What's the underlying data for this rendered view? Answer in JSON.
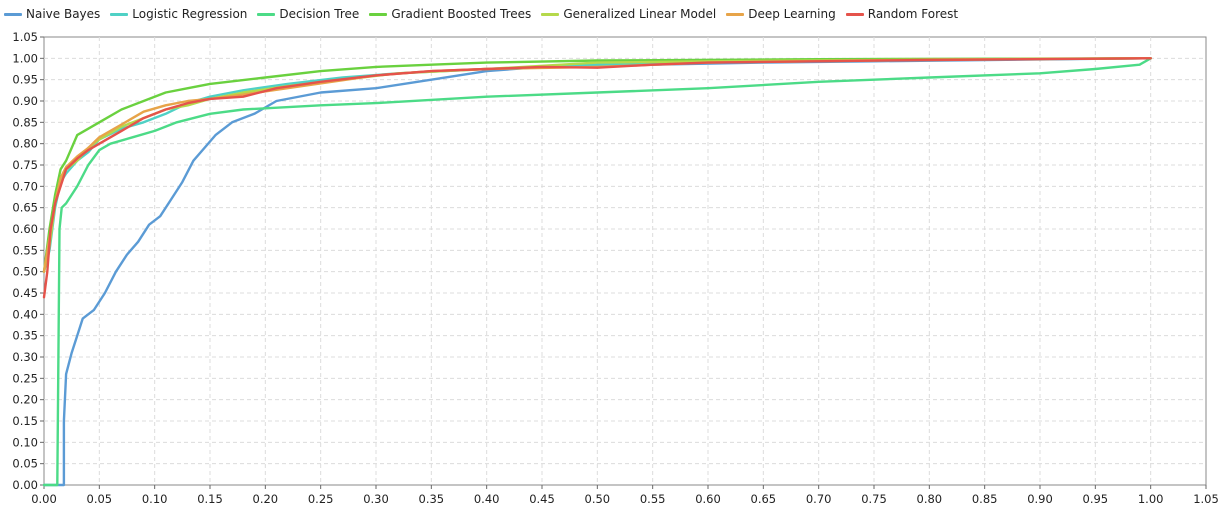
{
  "chart_data": {
    "type": "line",
    "title": "",
    "xlabel": "",
    "ylabel": "",
    "xlim": [
      0,
      1.05
    ],
    "ylim": [
      0,
      1.05
    ],
    "x_ticks": [
      "0.00",
      "0.05",
      "0.10",
      "0.15",
      "0.20",
      "0.25",
      "0.30",
      "0.35",
      "0.40",
      "0.45",
      "0.50",
      "0.55",
      "0.60",
      "0.65",
      "0.70",
      "0.75",
      "0.80",
      "0.85",
      "0.90",
      "0.95",
      "1.00",
      "1.05"
    ],
    "y_ticks": [
      "0.00",
      "0.05",
      "0.10",
      "0.15",
      "0.20",
      "0.25",
      "0.30",
      "0.35",
      "0.40",
      "0.45",
      "0.50",
      "0.55",
      "0.60",
      "0.65",
      "0.70",
      "0.75",
      "0.80",
      "0.85",
      "0.90",
      "0.95",
      "1.00",
      "1.05"
    ],
    "grid": true,
    "legend_position": "top-left",
    "series": [
      {
        "name": "Naive Bayes",
        "color": "#5b9bd5",
        "points": [
          [
            0.0,
            0.0
          ],
          [
            0.018,
            0.0
          ],
          [
            0.018,
            0.15
          ],
          [
            0.02,
            0.26
          ],
          [
            0.025,
            0.31
          ],
          [
            0.03,
            0.35
          ],
          [
            0.035,
            0.39
          ],
          [
            0.045,
            0.41
          ],
          [
            0.055,
            0.45
          ],
          [
            0.065,
            0.5
          ],
          [
            0.075,
            0.54
          ],
          [
            0.085,
            0.57
          ],
          [
            0.095,
            0.61
          ],
          [
            0.105,
            0.63
          ],
          [
            0.115,
            0.67
          ],
          [
            0.125,
            0.71
          ],
          [
            0.135,
            0.76
          ],
          [
            0.145,
            0.79
          ],
          [
            0.155,
            0.82
          ],
          [
            0.17,
            0.85
          ],
          [
            0.19,
            0.87
          ],
          [
            0.21,
            0.9
          ],
          [
            0.25,
            0.92
          ],
          [
            0.3,
            0.93
          ],
          [
            0.35,
            0.95
          ],
          [
            0.4,
            0.97
          ],
          [
            0.45,
            0.98
          ],
          [
            0.55,
            0.985
          ],
          [
            0.65,
            0.99
          ],
          [
            0.75,
            0.993
          ],
          [
            0.85,
            0.996
          ],
          [
            0.95,
            0.999
          ],
          [
            1.0,
            1.0
          ]
        ]
      },
      {
        "name": "Logistic Regression",
        "color": "#4fd1c5",
        "points": [
          [
            0.0,
            0.5
          ],
          [
            0.005,
            0.55
          ],
          [
            0.01,
            0.65
          ],
          [
            0.015,
            0.71
          ],
          [
            0.02,
            0.73
          ],
          [
            0.03,
            0.76
          ],
          [
            0.04,
            0.78
          ],
          [
            0.05,
            0.81
          ],
          [
            0.07,
            0.835
          ],
          [
            0.09,
            0.85
          ],
          [
            0.11,
            0.87
          ],
          [
            0.13,
            0.895
          ],
          [
            0.15,
            0.91
          ],
          [
            0.18,
            0.925
          ],
          [
            0.22,
            0.94
          ],
          [
            0.27,
            0.955
          ],
          [
            0.32,
            0.965
          ],
          [
            0.4,
            0.975
          ],
          [
            0.5,
            0.985
          ],
          [
            0.6,
            0.99
          ],
          [
            0.8,
            0.996
          ],
          [
            1.0,
            1.0
          ]
        ]
      },
      {
        "name": "Decision Tree",
        "color": "#4cdb87",
        "points": [
          [
            0.0,
            0.0
          ],
          [
            0.012,
            0.0
          ],
          [
            0.014,
            0.6
          ],
          [
            0.016,
            0.65
          ],
          [
            0.02,
            0.66
          ],
          [
            0.03,
            0.7
          ],
          [
            0.04,
            0.75
          ],
          [
            0.05,
            0.785
          ],
          [
            0.06,
            0.8
          ],
          [
            0.08,
            0.815
          ],
          [
            0.1,
            0.83
          ],
          [
            0.12,
            0.85
          ],
          [
            0.15,
            0.87
          ],
          [
            0.18,
            0.88
          ],
          [
            0.25,
            0.89
          ],
          [
            0.3,
            0.895
          ],
          [
            0.4,
            0.91
          ],
          [
            0.5,
            0.92
          ],
          [
            0.6,
            0.93
          ],
          [
            0.7,
            0.945
          ],
          [
            0.8,
            0.955
          ],
          [
            0.9,
            0.965
          ],
          [
            0.95,
            0.975
          ],
          [
            0.99,
            0.985
          ],
          [
            1.0,
            1.0
          ]
        ]
      },
      {
        "name": "Gradient Boosted Trees",
        "color": "#6ad13f",
        "points": [
          [
            0.0,
            0.5
          ],
          [
            0.005,
            0.6
          ],
          [
            0.01,
            0.68
          ],
          [
            0.015,
            0.74
          ],
          [
            0.02,
            0.76
          ],
          [
            0.025,
            0.79
          ],
          [
            0.03,
            0.82
          ],
          [
            0.04,
            0.835
          ],
          [
            0.05,
            0.85
          ],
          [
            0.07,
            0.88
          ],
          [
            0.09,
            0.9
          ],
          [
            0.11,
            0.92
          ],
          [
            0.13,
            0.93
          ],
          [
            0.15,
            0.94
          ],
          [
            0.2,
            0.955
          ],
          [
            0.25,
            0.97
          ],
          [
            0.3,
            0.98
          ],
          [
            0.35,
            0.985
          ],
          [
            0.4,
            0.99
          ],
          [
            0.5,
            0.995
          ],
          [
            0.7,
            0.998
          ],
          [
            1.0,
            1.0
          ]
        ]
      },
      {
        "name": "Generalized Linear Model",
        "color": "#b5d94b",
        "points": [
          [
            0.0,
            0.5
          ],
          [
            0.005,
            0.56
          ],
          [
            0.01,
            0.66
          ],
          [
            0.015,
            0.72
          ],
          [
            0.02,
            0.74
          ],
          [
            0.03,
            0.76
          ],
          [
            0.04,
            0.79
          ],
          [
            0.05,
            0.81
          ],
          [
            0.07,
            0.84
          ],
          [
            0.09,
            0.86
          ],
          [
            0.11,
            0.88
          ],
          [
            0.13,
            0.89
          ],
          [
            0.15,
            0.905
          ],
          [
            0.18,
            0.92
          ],
          [
            0.22,
            0.935
          ],
          [
            0.27,
            0.95
          ],
          [
            0.32,
            0.965
          ],
          [
            0.4,
            0.975
          ],
          [
            0.5,
            0.99
          ],
          [
            0.6,
            0.993
          ],
          [
            0.8,
            0.997
          ],
          [
            1.0,
            1.0
          ]
        ]
      },
      {
        "name": "Deep Learning",
        "color": "#e7a449",
        "points": [
          [
            0.0,
            0.5
          ],
          [
            0.005,
            0.58
          ],
          [
            0.01,
            0.66
          ],
          [
            0.015,
            0.72
          ],
          [
            0.02,
            0.745
          ],
          [
            0.03,
            0.77
          ],
          [
            0.04,
            0.79
          ],
          [
            0.05,
            0.815
          ],
          [
            0.07,
            0.845
          ],
          [
            0.09,
            0.875
          ],
          [
            0.11,
            0.89
          ],
          [
            0.13,
            0.9
          ],
          [
            0.15,
            0.905
          ],
          [
            0.18,
            0.915
          ],
          [
            0.22,
            0.93
          ],
          [
            0.26,
            0.945
          ],
          [
            0.3,
            0.96
          ],
          [
            0.35,
            0.97
          ],
          [
            0.4,
            0.975
          ],
          [
            0.5,
            0.98
          ],
          [
            0.6,
            0.99
          ],
          [
            0.8,
            0.997
          ],
          [
            1.0,
            1.0
          ]
        ]
      },
      {
        "name": "Random Forest",
        "color": "#e5534b",
        "points": [
          [
            0.0,
            0.44
          ],
          [
            0.003,
            0.5
          ],
          [
            0.006,
            0.6
          ],
          [
            0.01,
            0.66
          ],
          [
            0.015,
            0.7
          ],
          [
            0.02,
            0.74
          ],
          [
            0.03,
            0.765
          ],
          [
            0.04,
            0.785
          ],
          [
            0.05,
            0.8
          ],
          [
            0.07,
            0.83
          ],
          [
            0.09,
            0.86
          ],
          [
            0.11,
            0.88
          ],
          [
            0.13,
            0.895
          ],
          [
            0.15,
            0.905
          ],
          [
            0.18,
            0.91
          ],
          [
            0.21,
            0.93
          ],
          [
            0.25,
            0.945
          ],
          [
            0.3,
            0.96
          ],
          [
            0.35,
            0.97
          ],
          [
            0.4,
            0.975
          ],
          [
            0.45,
            0.98
          ],
          [
            0.5,
            0.978
          ],
          [
            0.55,
            0.985
          ],
          [
            0.6,
            0.99
          ],
          [
            0.8,
            0.996
          ],
          [
            1.0,
            1.0
          ]
        ]
      }
    ]
  }
}
